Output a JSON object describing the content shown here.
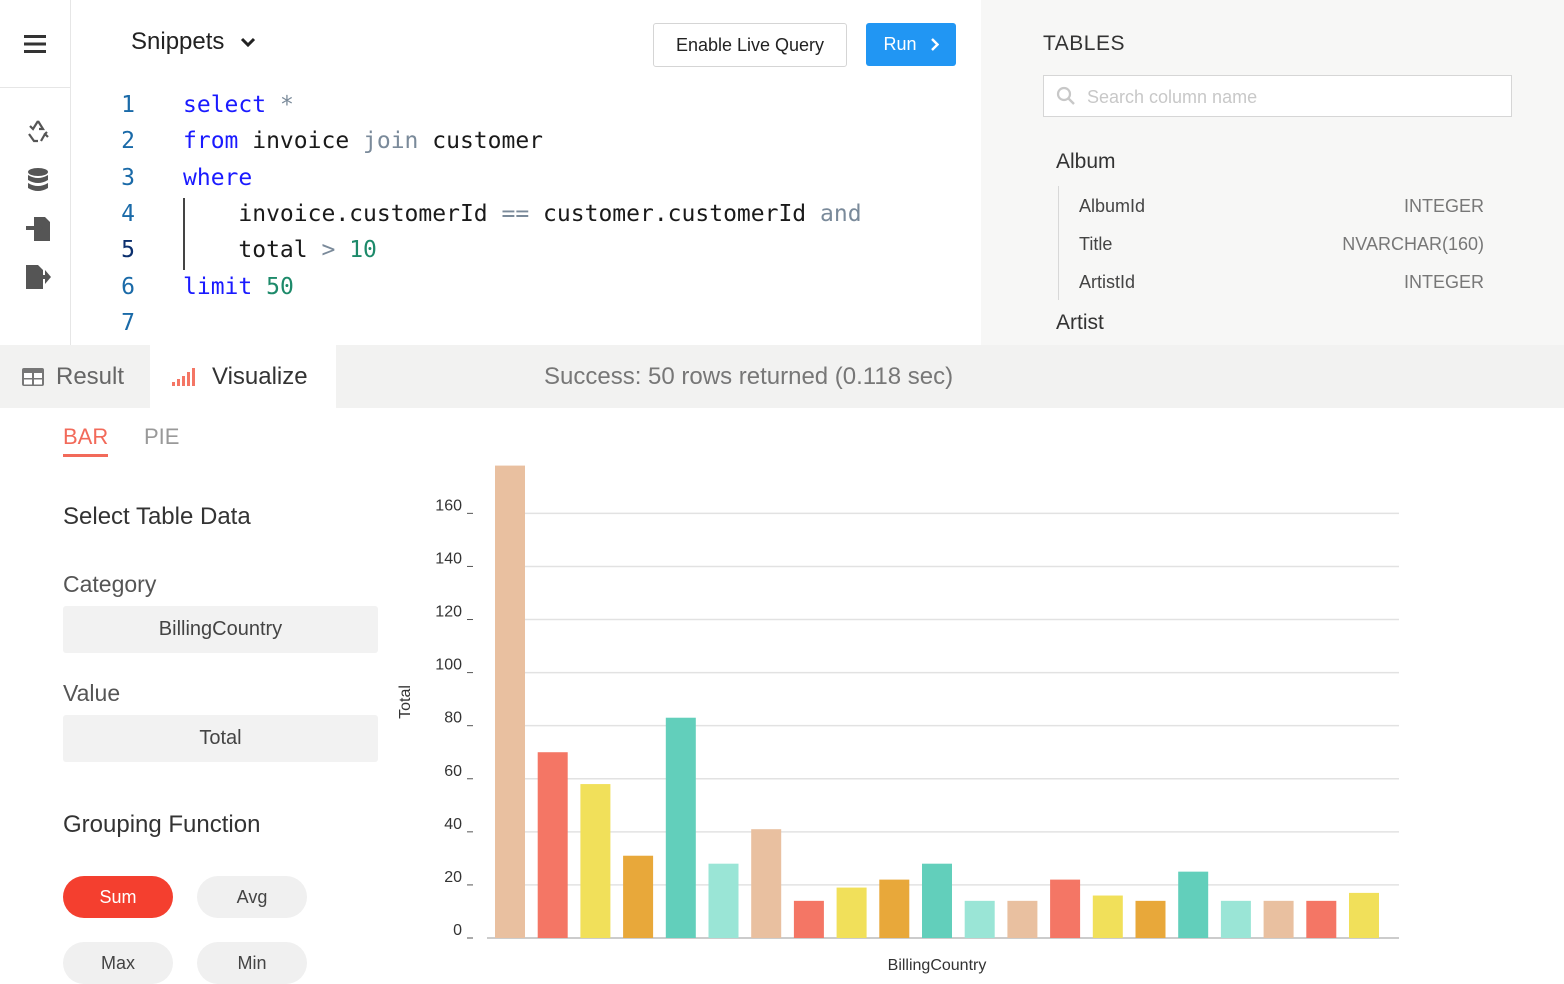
{
  "icons": {
    "menu": "hamburger-icon",
    "recycle": "recycle-icon",
    "db": "database-icon",
    "import": "import-icon",
    "export": "export-icon"
  },
  "editor": {
    "snippets_label": "Snippets",
    "live_query_label": "Enable Live Query",
    "run_label": "Run",
    "lines": [
      "1",
      "2",
      "3",
      "4",
      "5",
      "6",
      "7"
    ]
  },
  "tables_panel": {
    "title": "TABLES",
    "search_placeholder": "Search column name",
    "tables": [
      {
        "name": "Album",
        "columns": [
          {
            "name": "AlbumId",
            "type": "INTEGER"
          },
          {
            "name": "Title",
            "type": "NVARCHAR(160)"
          },
          {
            "name": "ArtistId",
            "type": "INTEGER"
          }
        ]
      },
      {
        "name": "Artist",
        "columns": []
      }
    ]
  },
  "result_bar": {
    "result_tab": "Result",
    "visualize_tab": "Visualize",
    "status": "Success: 50 rows returned (0.118 sec)"
  },
  "viz": {
    "chart_tabs": [
      "BAR",
      "PIE"
    ],
    "active_chart_tab": "BAR",
    "select_title": "Select Table Data",
    "category_label": "Category",
    "category_value": "BillingCountry",
    "value_label": "Value",
    "value_value": "Total",
    "grouping_title": "Grouping Function",
    "grouping": [
      "Sum",
      "Avg",
      "Max",
      "Min"
    ],
    "grouping_selected": "Sum"
  },
  "colors": {
    "accent": "#2196f3",
    "active_tab": "#f26a5a",
    "sum_pill": "#f43f2f",
    "bar_palette": [
      "#e9c0a0",
      "#f47665",
      "#f1e05a",
      "#e8a83a",
      "#62cfbb",
      "#9ae5d6"
    ]
  },
  "chart_data": {
    "type": "bar",
    "xlabel": "BillingCountry",
    "ylabel": "Total",
    "ylim": [
      0,
      180
    ],
    "yticks": [
      0,
      20,
      40,
      60,
      80,
      100,
      120,
      140,
      160
    ],
    "grid": true,
    "values": [
      178,
      70,
      58,
      31,
      83,
      28,
      41,
      14,
      19,
      22,
      28,
      14,
      14,
      22,
      16,
      14,
      25,
      14,
      14,
      14,
      17
    ],
    "colors": [
      "#e9c0a0",
      "#f47665",
      "#f1e05a",
      "#e8a83a",
      "#62cfbb",
      "#9ae5d6",
      "#e9c0a0",
      "#f47665",
      "#f1e05a",
      "#e8a83a",
      "#62cfbb",
      "#9ae5d6",
      "#e9c0a0",
      "#f47665",
      "#f1e05a",
      "#e8a83a",
      "#62cfbb",
      "#9ae5d6",
      "#e9c0a0",
      "#f47665",
      "#f1e05a"
    ]
  }
}
